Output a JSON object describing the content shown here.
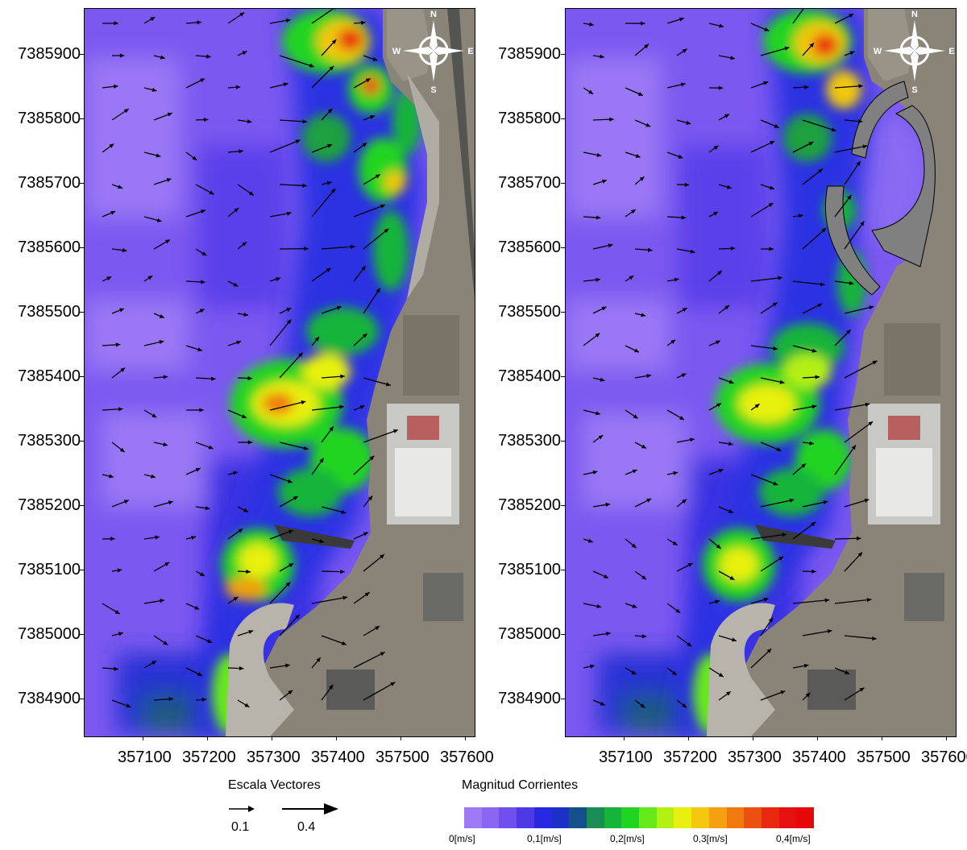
{
  "map": {
    "y_axis_labels": [
      "7385900",
      "7385800",
      "7385700",
      "7385600",
      "7385500",
      "7385400",
      "7385300",
      "7385200",
      "7385100",
      "7385000",
      "7384900"
    ],
    "x_axis_labels": [
      "357100",
      "357200",
      "357300",
      "357400",
      "357500",
      "357600"
    ],
    "compass": {
      "n": "N",
      "s": "S",
      "e": "E",
      "w": "W"
    }
  },
  "legend": {
    "vector_title": "Escala Vectores",
    "vector_scale": [
      "0.1",
      "0.4"
    ],
    "magnitude_title": "Magnitud Corrientes",
    "colorbar_labels": [
      "0[m/s]",
      "0,1[m/s]",
      "0,2[m/s]",
      "0,3[m/s]",
      "0,4[m/s]"
    ],
    "colorbar_colors": [
      "#a07af5",
      "#8a66f2",
      "#6f50ec",
      "#4d3ae6",
      "#2828e0",
      "#1a30c8",
      "#16508c",
      "#1a8c56",
      "#16b43a",
      "#22d422",
      "#66e81a",
      "#b4f014",
      "#e8f010",
      "#f5c810",
      "#f5a010",
      "#f07a10",
      "#ec5010",
      "#e82810",
      "#e61010",
      "#e60808"
    ]
  }
}
